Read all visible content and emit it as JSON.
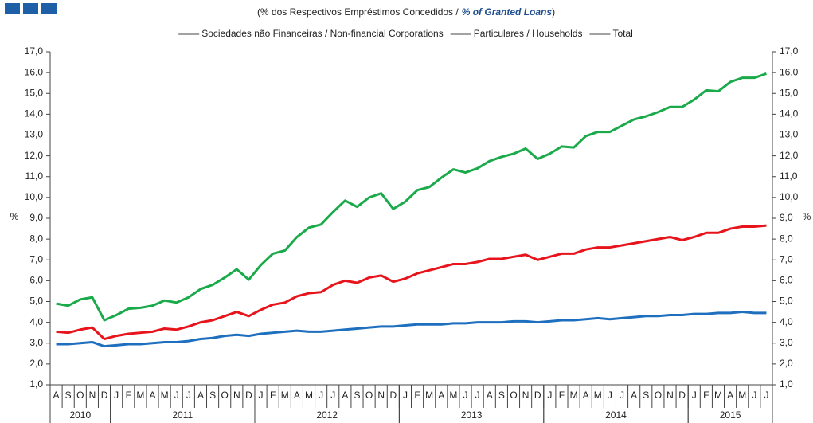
{
  "chart_data": {
    "type": "line",
    "subtitle": [
      "(% dos Respectivos Empréstimos Concedidos /",
      "% of Granted Loans",
      ")"
    ],
    "ylabel": "%",
    "y2label": "%",
    "categories": [
      "A",
      "S",
      "O",
      "N",
      "D",
      "J",
      "F",
      "M",
      "A",
      "M",
      "J",
      "J",
      "A",
      "S",
      "O",
      "N",
      "D",
      "J",
      "F",
      "M",
      "A",
      "M",
      "J",
      "J",
      "A",
      "S",
      "O",
      "N",
      "D",
      "J",
      "F",
      "M",
      "A",
      "M",
      "J",
      "J",
      "A",
      "S",
      "O",
      "N",
      "D",
      "J",
      "F",
      "M",
      "A",
      "M",
      "J",
      "J",
      "A",
      "S",
      "O",
      "N",
      "D",
      "J",
      "F",
      "M",
      "A",
      "M",
      "J",
      "J"
    ],
    "years": [
      "2010",
      "2011",
      "2012",
      "2013",
      "2014",
      "2015"
    ],
    "series": [
      {
        "name": "Sociedades não Financeiras / Non-financial Corporations",
        "color": "#1aaa4a",
        "values": [
          4.9,
          4.8,
          5.1,
          5.2,
          4.1,
          4.35,
          4.65,
          4.7,
          4.8,
          5.05,
          4.95,
          5.2,
          5.6,
          5.8,
          6.15,
          6.55,
          6.05,
          6.75,
          7.3,
          7.45,
          8.1,
          8.55,
          8.7,
          9.3,
          9.85,
          9.55,
          10.0,
          10.2,
          9.45,
          9.8,
          10.35,
          10.5,
          10.95,
          11.35,
          11.2,
          11.4,
          11.75,
          11.95,
          12.1,
          12.35,
          11.85,
          12.1,
          12.45,
          12.4,
          12.95,
          13.15,
          13.15,
          13.45,
          13.75,
          13.9,
          14.1,
          14.35,
          14.35,
          14.7,
          15.15,
          15.1,
          15.55,
          15.75,
          15.75,
          15.95
        ]
      },
      {
        "name": "Particulares / Households",
        "color": "#1f6fbf",
        "values": [
          2.95,
          2.95,
          3.0,
          3.05,
          2.85,
          2.9,
          2.95,
          2.95,
          3.0,
          3.05,
          3.05,
          3.1,
          3.2,
          3.25,
          3.35,
          3.4,
          3.35,
          3.45,
          3.5,
          3.55,
          3.6,
          3.55,
          3.55,
          3.6,
          3.65,
          3.7,
          3.75,
          3.8,
          3.8,
          3.85,
          3.9,
          3.9,
          3.9,
          3.95,
          3.95,
          4.0,
          4.0,
          4.0,
          4.05,
          4.05,
          4.0,
          4.05,
          4.1,
          4.1,
          4.15,
          4.2,
          4.15,
          4.2,
          4.25,
          4.3,
          4.3,
          4.35,
          4.35,
          4.4,
          4.4,
          4.45,
          4.45,
          4.5,
          4.45,
          4.45
        ]
      },
      {
        "name": "Total",
        "color": "#e8141c",
        "values": [
          3.55,
          3.5,
          3.65,
          3.75,
          3.2,
          3.35,
          3.45,
          3.5,
          3.55,
          3.7,
          3.65,
          3.8,
          4.0,
          4.1,
          4.3,
          4.5,
          4.3,
          4.6,
          4.85,
          4.95,
          5.25,
          5.4,
          5.45,
          5.8,
          6.0,
          5.9,
          6.15,
          6.25,
          5.95,
          6.1,
          6.35,
          6.5,
          6.65,
          6.8,
          6.8,
          6.9,
          7.05,
          7.05,
          7.15,
          7.25,
          7.0,
          7.15,
          7.3,
          7.3,
          7.5,
          7.6,
          7.6,
          7.7,
          7.8,
          7.9,
          8.0,
          8.1,
          7.95,
          8.1,
          8.3,
          8.3,
          8.5,
          8.6,
          8.6,
          8.65
        ]
      }
    ],
    "ylim": [
      1,
      17
    ],
    "yticks": [
      {
        "value": 1,
        "label": "1,0"
      },
      {
        "value": 2,
        "label": "2,0"
      },
      {
        "value": 3,
        "label": "3,0"
      },
      {
        "value": 4,
        "label": "4,0"
      },
      {
        "value": 5,
        "label": "5,0"
      },
      {
        "value": 6,
        "label": "6,0"
      },
      {
        "value": 7,
        "label": "7,0"
      },
      {
        "value": 8,
        "label": "8,0"
      },
      {
        "value": 9,
        "label": "9,0"
      },
      {
        "value": 10,
        "label": "10,0"
      },
      {
        "value": 11,
        "label": "11,0"
      },
      {
        "value": 12,
        "label": "12,0"
      },
      {
        "value": 13,
        "label": "13,0"
      },
      {
        "value": 14,
        "label": "14,0"
      },
      {
        "value": 15,
        "label": "15,0"
      },
      {
        "value": 16,
        "label": "16,0"
      },
      {
        "value": 17,
        "label": "17,0"
      }
    ],
    "y2lim": [
      1,
      17
    ],
    "y2ticks": [
      {
        "value": 1,
        "label": "1,0"
      },
      {
        "value": 2,
        "label": "2,0"
      },
      {
        "value": 3,
        "label": "3,0"
      },
      {
        "value": 4,
        "label": "4,0"
      },
      {
        "value": 5,
        "label": "5,0"
      },
      {
        "value": 6,
        "label": "6,0"
      },
      {
        "value": 7,
        "label": "7,0"
      },
      {
        "value": 8,
        "label": "8,0"
      },
      {
        "value": 9,
        "label": "9,0"
      },
      {
        "value": 10,
        "label": "10,0"
      },
      {
        "value": 11,
        "label": "11,0"
      },
      {
        "value": 12,
        "label": "12,0"
      },
      {
        "value": 13,
        "label": "13,0"
      },
      {
        "value": 14,
        "label": "14,0"
      },
      {
        "value": 15,
        "label": "15,0"
      },
      {
        "value": 16,
        "label": "16,0"
      },
      {
        "value": 17,
        "label": "17,0"
      }
    ],
    "grid": false,
    "legend": "top"
  }
}
